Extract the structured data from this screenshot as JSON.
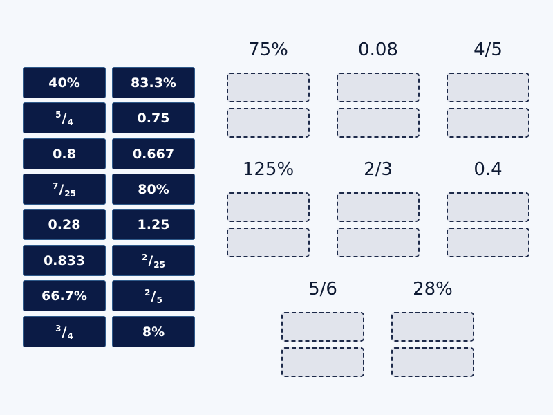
{
  "tiles": [
    {
      "text": "40%"
    },
    {
      "text": "83.3%"
    },
    {
      "num": "5",
      "den": "4"
    },
    {
      "text": "0.75"
    },
    {
      "text": "0.8"
    },
    {
      "text": "0.667"
    },
    {
      "num": "7",
      "den": "25"
    },
    {
      "text": "80%"
    },
    {
      "text": "0.28"
    },
    {
      "text": "1.25"
    },
    {
      "text": "0.833"
    },
    {
      "num": "2",
      "den": "25"
    },
    {
      "text": "66.7%"
    },
    {
      "num": "2",
      "den": "5"
    },
    {
      "num": "3",
      "den": "4"
    },
    {
      "text": "8%"
    }
  ],
  "targets": [
    {
      "label": "75%"
    },
    {
      "label": "0.08"
    },
    {
      "label": "4/5"
    },
    {
      "label": "125%"
    },
    {
      "label": "2/3"
    },
    {
      "label": "0.4"
    },
    {
      "label": "5/6"
    },
    {
      "label": "28%"
    }
  ],
  "colors": {
    "background": "#f5f8fc",
    "tile": "#0b1b45",
    "slot": "#e1e4ec"
  }
}
